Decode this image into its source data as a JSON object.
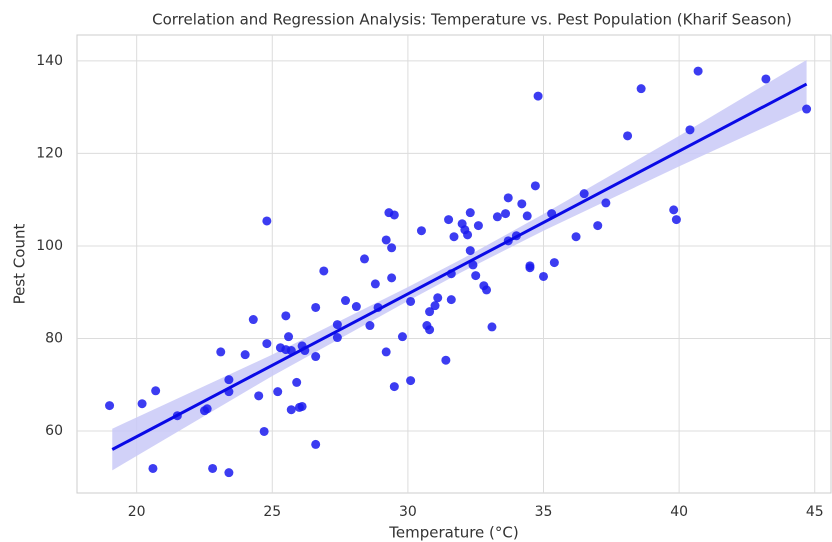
{
  "chart_data": {
    "type": "scatter",
    "title": "Correlation and Regression Analysis: Temperature vs. Pest Population (Kharif Season)",
    "x_label": "Temperature (°C)",
    "y_label": "Pest Count",
    "xlim": [
      17.8,
      45.6
    ],
    "xticks": [
      20,
      25,
      30,
      35,
      40,
      45
    ],
    "ylim": [
      46.6,
      145.6
    ],
    "yticks": [
      60,
      80,
      100,
      120,
      140
    ],
    "grid": true,
    "color": "#1a1aee",
    "line_color": "#0a0ae6",
    "band_color": "#c9c9f7",
    "x": [
      19.0,
      20.2,
      20.7,
      20.6,
      21.5,
      22.5,
      22.6,
      22.8,
      23.1,
      23.4,
      23.4,
      23.4,
      24.0,
      24.3,
      24.5,
      24.7,
      24.8,
      24.8,
      25.2,
      25.3,
      25.5,
      25.5,
      25.6,
      25.7,
      25.7,
      25.9,
      26.0,
      26.1,
      26.1,
      26.2,
      26.6,
      26.6,
      26.6,
      26.9,
      27.4,
      27.4,
      27.7,
      28.1,
      28.4,
      28.6,
      28.8,
      28.9,
      29.2,
      29.2,
      29.3,
      29.4,
      29.4,
      29.5,
      29.5,
      29.8,
      30.1,
      30.1,
      30.5,
      30.7,
      30.8,
      30.8,
      31.0,
      31.1,
      31.4,
      31.5,
      31.6,
      31.6,
      31.7,
      32.0,
      32.1,
      32.2,
      32.3,
      32.3,
      32.4,
      32.5,
      32.6,
      32.8,
      32.9,
      33.1,
      33.3,
      33.6,
      33.7,
      33.7,
      34.0,
      34.2,
      34.4,
      34.5,
      34.5,
      34.7,
      34.8,
      35.0,
      35.3,
      35.4,
      36.2,
      36.5,
      37.0,
      37.3,
      38.1,
      38.6,
      39.8,
      39.9,
      40.4,
      40.7,
      43.2,
      44.7
    ],
    "values": [
      65.5,
      65.9,
      68.7,
      51.9,
      63.3,
      64.4,
      64.8,
      51.9,
      77.1,
      71.1,
      68.5,
      51.0,
      76.5,
      84.1,
      67.6,
      59.9,
      78.9,
      105.4,
      68.5,
      78.0,
      77.6,
      84.9,
      80.4,
      77.4,
      64.6,
      70.5,
      65.1,
      65.3,
      78.4,
      77.4,
      86.7,
      76.1,
      57.1,
      94.6,
      80.2,
      83.0,
      88.2,
      86.9,
      97.2,
      82.8,
      91.8,
      86.7,
      101.3,
      77.1,
      107.2,
      99.6,
      93.1,
      106.7,
      69.6,
      80.4,
      88.0,
      70.9,
      103.3,
      82.8,
      85.8,
      81.9,
      87.1,
      88.8,
      75.3,
      105.7,
      88.4,
      94.0,
      102.0,
      104.8,
      103.5,
      102.4,
      107.2,
      99.0,
      95.9,
      93.6,
      104.4,
      91.4,
      90.5,
      82.5,
      106.3,
      107.0,
      101.1,
      110.4,
      102.2,
      109.1,
      106.5,
      95.3,
      95.7,
      113.0,
      132.4,
      93.4,
      107.0,
      96.4,
      102.0,
      111.3,
      104.4,
      109.3,
      123.8,
      134.0,
      107.8,
      105.7,
      125.1,
      137.8,
      136.1,
      129.6
    ],
    "regression": {
      "x": [
        19.1,
        44.7
      ],
      "values": [
        56,
        135
      ]
    },
    "band": {
      "x": [
        19.1,
        25,
        30,
        32,
        35,
        40,
        44.7
      ],
      "lower": [
        51.5,
        71.9,
        88.1,
        94.4,
        103.3,
        117.2,
        129.8
      ],
      "upper": [
        60.5,
        76.5,
        91.1,
        97.2,
        106.9,
        123.8,
        140.2
      ]
    }
  }
}
